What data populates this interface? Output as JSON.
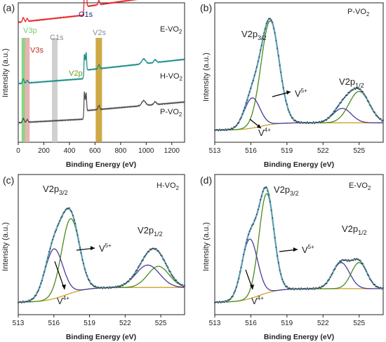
{
  "colors": {
    "survey": [
      "#e8191e",
      "#138a82",
      "#4a4a4a"
    ],
    "envelope": "#5ea0b8",
    "points": "#3b3f46",
    "v5": "#4a8a1c",
    "v4": "#4b3a9a",
    "bg": "#c9a227",
    "v3p": "#71d16a",
    "v3s": "#e3a7a8",
    "c1s": "#c8c8c8",
    "v2s": "#c79a26",
    "o1s": "#1b2a8a",
    "v2p_lbl": "#6e9a1e"
  },
  "chart_data": [
    {
      "type": "line",
      "panel": "(a)",
      "xlabel": "Binding Energy (eV)",
      "ylabel": "Intensity (a.u.)",
      "xlim": [
        0,
        1300
      ],
      "xticks": [
        "0",
        "200",
        "400",
        "600",
        "800",
        "1000",
        "1200"
      ],
      "xtick_values": [
        0,
        200,
        400,
        600,
        800,
        1000,
        1200
      ],
      "series": [
        {
          "name": "E-VO",
          "sub": "2",
          "color_idx": 0,
          "baseline": 0.86,
          "slope": 0.0001
        },
        {
          "name": "H-VO",
          "sub": "2",
          "color_idx": 1,
          "baseline": 0.42,
          "slope": 7e-05
        },
        {
          "name": "P-VO",
          "sub": "2",
          "color_idx": 2,
          "baseline": 0.14,
          "slope": 5e-05
        }
      ],
      "peaks": [
        {
          "label": "V3p",
          "x": 40,
          "color": "v3p"
        },
        {
          "label": "V3s",
          "x": 70,
          "color": "v3s"
        },
        {
          "label": "C1s",
          "x": 285,
          "color": "c1s"
        },
        {
          "label": "O1s",
          "x": 530,
          "color": "o1s"
        },
        {
          "label": "V2p",
          "x": 517,
          "color": "v2p_lbl"
        },
        {
          "label": "V2s",
          "x": 630,
          "color": "v2s"
        }
      ]
    },
    {
      "type": "line",
      "panel": "(b)",
      "sample": "P-VO",
      "sample_sub": "2",
      "xlabel": "Binding Energy (eV)",
      "ylabel": "Intensity (a.u.)",
      "xlim": [
        513,
        527
      ],
      "xticks": [
        "513",
        "516",
        "519",
        "522",
        "525"
      ],
      "xtick_values": [
        513,
        516,
        519,
        522,
        525
      ],
      "peak_labels": [
        {
          "main": "V2p",
          "sub": "3/2"
        },
        {
          "main": "V2p",
          "sub": "1/2"
        }
      ],
      "states": [
        {
          "main": "V",
          "sup": "5+"
        },
        {
          "main": "V",
          "sup": "4+"
        }
      ],
      "components": {
        "v5": [
          {
            "center": 517.6,
            "height": 0.86,
            "width": 0.75
          },
          {
            "center": 525.0,
            "height": 0.26,
            "width": 0.85
          }
        ],
        "v4": [
          {
            "center": 516.1,
            "height": 0.25,
            "width": 0.65
          },
          {
            "center": 523.6,
            "height": 0.12,
            "width": 0.75
          }
        ],
        "background": {
          "start": 0.02,
          "end": 0.08,
          "step_center": 516.8,
          "step_width": 0.7
        }
      }
    },
    {
      "type": "line",
      "panel": "(c)",
      "sample": "H-VO",
      "sample_sub": "2",
      "xlabel": "Binding Energy (eV)",
      "ylabel": "Intensity (a.u.)",
      "xlim": [
        513,
        527
      ],
      "xticks": [
        "513",
        "516",
        "519",
        "522",
        "525"
      ],
      "xtick_values": [
        513,
        516,
        519,
        522,
        525
      ],
      "peak_labels": [
        {
          "main": "V2p",
          "sub": "3/2"
        },
        {
          "main": "V2p",
          "sub": "1/2"
        }
      ],
      "states": [
        {
          "main": "V",
          "sup": "5+"
        },
        {
          "main": "V",
          "sup": "4+"
        }
      ],
      "components": {
        "v5": [
          {
            "center": 517.4,
            "height": 0.6,
            "width": 0.75
          },
          {
            "center": 524.8,
            "height": 0.17,
            "width": 0.9
          }
        ],
        "v4": [
          {
            "center": 516.0,
            "height": 0.4,
            "width": 0.75
          },
          {
            "center": 523.9,
            "height": 0.18,
            "width": 1.0
          }
        ],
        "background": {
          "start": 0.02,
          "end": 0.14,
          "step_center": 517.0,
          "step_width": 0.9
        }
      }
    },
    {
      "type": "line",
      "panel": "(d)",
      "sample": "E-VO",
      "sample_sub": "2",
      "xlabel": "Binding Energy (eV)",
      "ylabel": "Intensity (a.u.)",
      "xlim": [
        513,
        527
      ],
      "xticks": [
        "513",
        "516",
        "519",
        "522",
        "525"
      ],
      "xtick_values": [
        513,
        516,
        519,
        522,
        525
      ],
      "peak_labels": [
        {
          "main": "V2p",
          "sub": "3/2"
        },
        {
          "main": "V2p",
          "sub": "1/2"
        }
      ],
      "states": [
        {
          "main": "V",
          "sup": "5+"
        },
        {
          "main": "V",
          "sup": "4+"
        }
      ],
      "components": {
        "v5": [
          {
            "center": 517.3,
            "height": 0.8,
            "width": 0.62
          },
          {
            "center": 525.0,
            "height": 0.21,
            "width": 0.65
          }
        ],
        "v4": [
          {
            "center": 515.9,
            "height": 0.48,
            "width": 0.65
          },
          {
            "center": 523.5,
            "height": 0.21,
            "width": 0.7
          }
        ],
        "background": {
          "start": 0.02,
          "end": 0.13,
          "step_center": 516.7,
          "step_width": 0.8
        }
      }
    }
  ]
}
